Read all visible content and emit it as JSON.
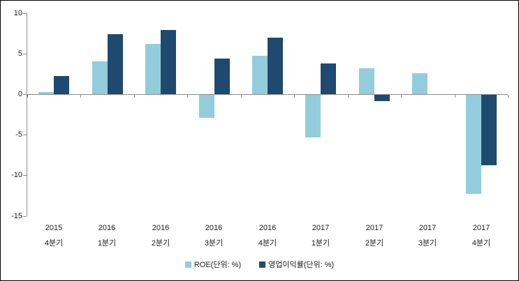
{
  "chart_data": {
    "type": "bar",
    "title": "",
    "xlabel": "",
    "ylabel": "",
    "grid": false,
    "legend_position": "bottom",
    "ylim": [
      -15,
      10
    ],
    "yticks": [
      10,
      5,
      0,
      -5,
      -10,
      -15
    ],
    "categories": [
      {
        "year": "2015",
        "quarter": "4분기"
      },
      {
        "year": "2016",
        "quarter": "1분기"
      },
      {
        "year": "2016",
        "quarter": "2분기"
      },
      {
        "year": "2016",
        "quarter": "3분기"
      },
      {
        "year": "2016",
        "quarter": "4분기"
      },
      {
        "year": "2017",
        "quarter": "1분기"
      },
      {
        "year": "2017",
        "quarter": "2분기"
      },
      {
        "year": "2017",
        "quarter": "3분기"
      },
      {
        "year": "2017",
        "quarter": "4분기"
      }
    ],
    "series": [
      {
        "name": "ROE(단위: %)",
        "color": "#93CDDC",
        "values": [
          0.3,
          4.0,
          6.2,
          -2.8,
          4.7,
          -5.2,
          3.2,
          2.6,
          -12.2
        ]
      },
      {
        "name": "영업이익률(단위: %)",
        "color": "#1F4A70",
        "values": [
          2.2,
          7.4,
          7.9,
          4.4,
          7.0,
          3.8,
          -0.8,
          0,
          -8.7
        ]
      }
    ]
  },
  "colors": {
    "background": "#FFFFFF",
    "frame_border": "#000000",
    "axis_line": "#8C8C8C",
    "text": "#1A1A1A",
    "series_roe": "#93CDDC",
    "series_op_margin": "#1F4A70"
  }
}
